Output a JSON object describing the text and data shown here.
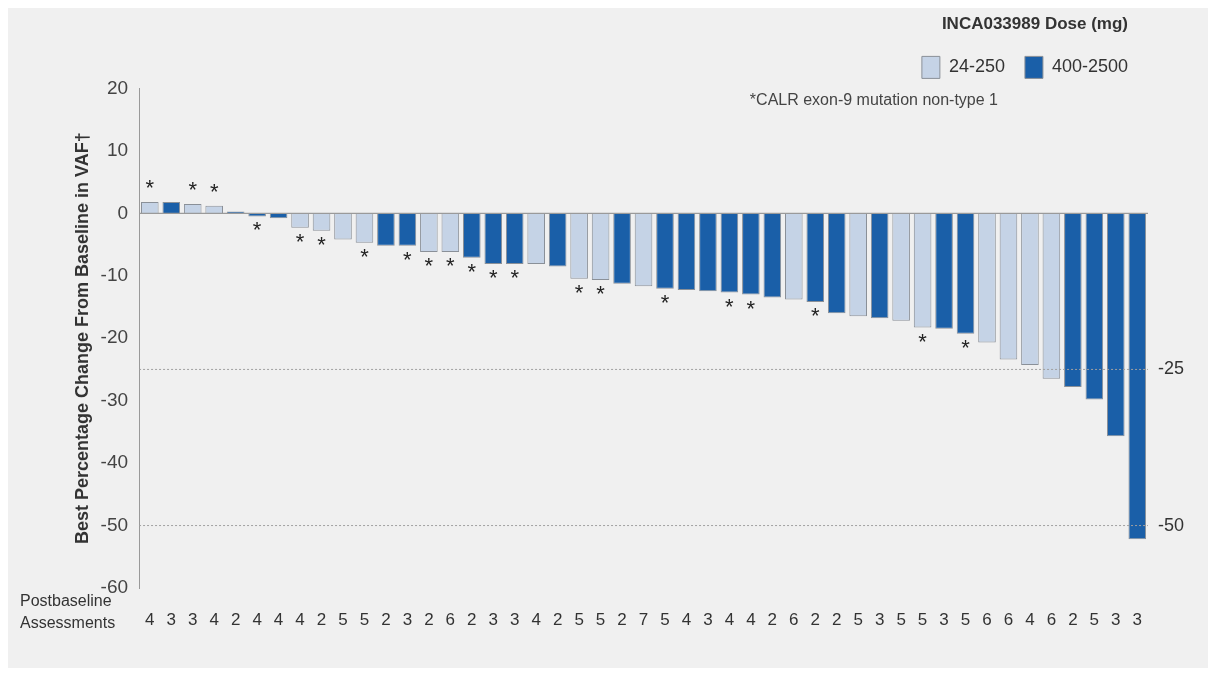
{
  "chart_data": {
    "type": "bar",
    "ylabel": "Best Percentage Change From Baseline in VAF†",
    "xlabel": "Postbaseline Assessments",
    "legend_title": "INCA033989 Dose (mg)",
    "legend": "top right",
    "categories": [
      "4",
      "3",
      "3",
      "4",
      "2",
      "4",
      "4",
      "4",
      "2",
      "5",
      "5",
      "2",
      "3",
      "2",
      "6",
      "2",
      "3",
      "3",
      "4",
      "2",
      "5",
      "5",
      "2",
      "7",
      "5",
      "4",
      "3",
      "4",
      "4",
      "2",
      "6",
      "2",
      "2",
      "5",
      "3",
      "5",
      "5",
      "3",
      "5",
      "6",
      "6",
      "4",
      "6",
      "2",
      "5",
      "3",
      "3"
    ],
    "series": [
      {
        "name": "24-250",
        "color": "#c5d3e6",
        "values": [
          1.8,
          null,
          1.5,
          1.2,
          null,
          null,
          null,
          -2.3,
          -2.8,
          -4.2,
          -4.7,
          null,
          null,
          -6.2,
          -6.2,
          null,
          null,
          null,
          -8.1,
          null,
          -10.5,
          -10.7,
          null,
          -11.7,
          null,
          null,
          null,
          null,
          null,
          null,
          -13.8,
          null,
          null,
          -16.5,
          null,
          -17.2,
          -18.3,
          null,
          null,
          -20.7,
          -23.4,
          -24.3,
          -26.5,
          null,
          null,
          null,
          null
        ],
        "value_labels": [
          "*",
          null,
          "*",
          "*",
          null,
          null,
          null,
          "*",
          "*",
          null,
          "*",
          null,
          null,
          "*",
          "*",
          null,
          null,
          null,
          null,
          null,
          "*",
          "*",
          null,
          null,
          null,
          null,
          null,
          null,
          null,
          null,
          null,
          null,
          null,
          null,
          null,
          null,
          "*",
          null,
          null,
          null,
          null,
          null,
          null,
          null,
          null,
          null,
          null
        ]
      },
      {
        "name": "400-2500",
        "color": "#1a5fa8",
        "values": [
          null,
          1.8,
          null,
          null,
          0.3,
          -0.5,
          -0.8,
          null,
          null,
          null,
          null,
          -5.2,
          -5.2,
          null,
          null,
          -7.1,
          -8.1,
          -8.1,
          null,
          -8.5,
          null,
          null,
          -11.3,
          null,
          -12.1,
          -12.3,
          -12.5,
          -12.7,
          -13.0,
          -13.5,
          null,
          -14.2,
          -16.0,
          null,
          -16.8,
          null,
          null,
          -18.5,
          -19.3,
          null,
          null,
          null,
          null,
          -27.8,
          -29.8,
          -35.7,
          -52.2
        ],
        "value_labels": [
          null,
          null,
          null,
          null,
          null,
          "*",
          null,
          null,
          null,
          null,
          null,
          null,
          "*",
          null,
          null,
          "*",
          "*",
          "*",
          null,
          null,
          null,
          null,
          null,
          null,
          "*",
          null,
          null,
          "*",
          "*",
          null,
          null,
          "*",
          null,
          null,
          null,
          null,
          null,
          null,
          "*",
          null,
          null,
          null,
          null,
          null,
          null,
          null,
          null
        ]
      }
    ],
    "ylim": [
      -60,
      20
    ],
    "yticks": [
      20,
      10,
      0,
      -10,
      -20,
      -30,
      -40,
      -50,
      -60
    ],
    "ref_lines": [
      {
        "axis": "y",
        "value": -25,
        "label": "-25",
        "line_style": "dotted"
      },
      {
        "axis": "y",
        "value": -50,
        "label": "-50",
        "line_style": "dotted"
      }
    ],
    "annotations": [
      "*CALR exon-9 mutation non-type 1"
    ]
  }
}
